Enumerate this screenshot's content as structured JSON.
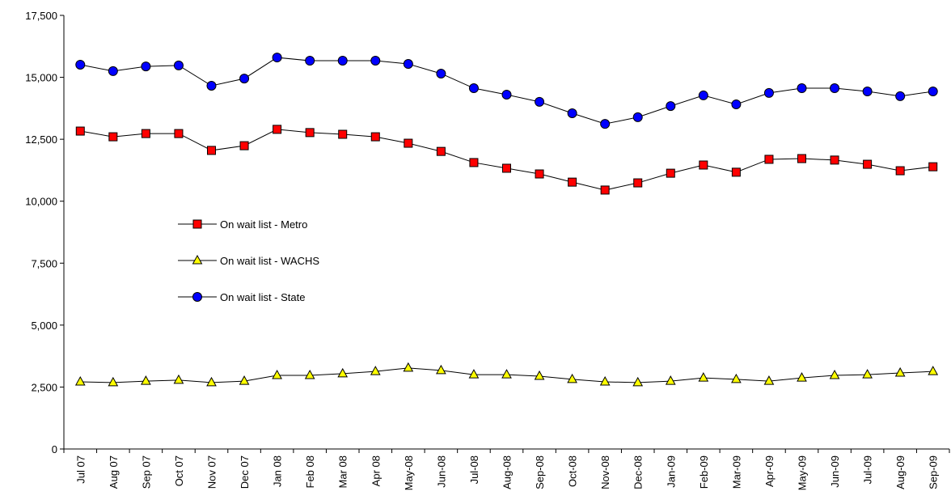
{
  "chart_data": {
    "type": "line",
    "categories": [
      "Jul 07",
      "Aug 07",
      "Sep 07",
      "Oct 07",
      "Nov 07",
      "Dec 07",
      "Jan 08",
      "Feb 08",
      "Mar 08",
      "Apr 08",
      "May-08",
      "Jun-08",
      "Jul-08",
      "Aug-08",
      "Sep-08",
      "Oct-08",
      "Nov-08",
      "Dec-08",
      "Jan-09",
      "Feb-09",
      "Mar-09",
      "Apr-09",
      "May-09",
      "Jun-09",
      "Jul-09",
      "Aug-09",
      "Sep-09"
    ],
    "series": [
      {
        "name": "On wait list - Metro",
        "color": "#ff0000",
        "marker": "square",
        "values": [
          12830,
          12600,
          12730,
          12730,
          12050,
          12240,
          12900,
          12770,
          12700,
          12600,
          12340,
          12010,
          11560,
          11330,
          11100,
          10770,
          10450,
          10740,
          11130,
          11460,
          11170,
          11690,
          11720,
          11660,
          11490,
          11230,
          11390
        ]
      },
      {
        "name": "On wait list - WACHS",
        "color": "#ffff00",
        "marker": "triangle",
        "values": [
          2710,
          2680,
          2740,
          2780,
          2680,
          2740,
          2970,
          2970,
          3040,
          3130,
          3270,
          3170,
          3000,
          3000,
          2940,
          2810,
          2710,
          2680,
          2740,
          2870,
          2810,
          2740,
          2870,
          2970,
          3000,
          3070,
          3130
        ]
      },
      {
        "name": "On wait list - State",
        "color": "#0000ff",
        "marker": "circle",
        "values": [
          15510,
          15250,
          15440,
          15480,
          14660,
          14950,
          15800,
          15670,
          15670,
          15670,
          15540,
          15150,
          14560,
          14300,
          14010,
          13550,
          13120,
          13390,
          13840,
          14270,
          13910,
          14370,
          14560,
          14560,
          14430,
          14240,
          14430
        ]
      }
    ],
    "ylim": [
      0,
      17500
    ],
    "yticks": [
      0,
      {
        "value": 2500,
        "label": "2,500"
      },
      {
        "value": 5000,
        "label": "5,000"
      },
      {
        "value": 7500,
        "label": "7,500"
      },
      {
        "value": 10000,
        "label": "10,000"
      },
      {
        "value": 12500,
        "label": "12,500"
      },
      {
        "value": 15000,
        "label": "15,000"
      },
      {
        "value": 17500,
        "label": "17,500"
      }
    ]
  }
}
